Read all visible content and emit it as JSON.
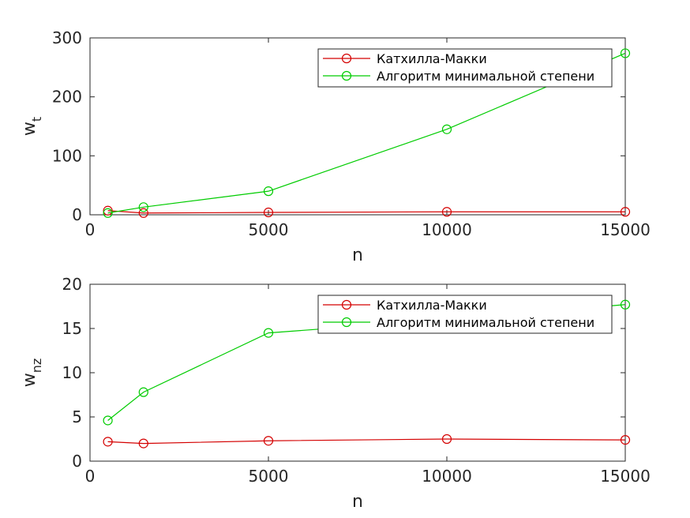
{
  "chart_data": [
    {
      "type": "line",
      "xlabel": "n",
      "ylabel": "w",
      "ylabel_sub": "t",
      "xlim": [
        0,
        15000
      ],
      "ylim": [
        0,
        300
      ],
      "xticks": [
        0,
        5000,
        10000,
        15000
      ],
      "yticks": [
        0,
        100,
        200,
        300
      ],
      "grid": false,
      "legend_position": "top-right",
      "x": [
        500,
        1500,
        5000,
        10000,
        15000
      ],
      "series": [
        {
          "name": "Катхилла-Макки",
          "color": "#d40000",
          "marker": "circle",
          "values": [
            7,
            3,
            4,
            5,
            5
          ]
        },
        {
          "name": "Алгоритм минимальной степени",
          "color": "#00cc00",
          "marker": "circle",
          "values": [
            3,
            13,
            40,
            145,
            274
          ]
        }
      ]
    },
    {
      "type": "line",
      "xlabel": "n",
      "ylabel": "w",
      "ylabel_sub": "nz",
      "xlim": [
        0,
        15000
      ],
      "ylim": [
        0,
        20
      ],
      "xticks": [
        0,
        5000,
        10000,
        15000
      ],
      "yticks": [
        0,
        5,
        10,
        15,
        20
      ],
      "grid": false,
      "legend_position": "top-right",
      "x": [
        500,
        1500,
        5000,
        10000,
        15000
      ],
      "series": [
        {
          "name": "Катхилла-Макки",
          "color": "#d40000",
          "marker": "circle",
          "values": [
            2.2,
            2.0,
            2.3,
            2.5,
            2.4
          ]
        },
        {
          "name": "Алгоритм минимальной степени",
          "color": "#00cc00",
          "marker": "circle",
          "values": [
            4.6,
            7.8,
            14.5,
            16.0,
            17.7
          ]
        }
      ]
    }
  ]
}
